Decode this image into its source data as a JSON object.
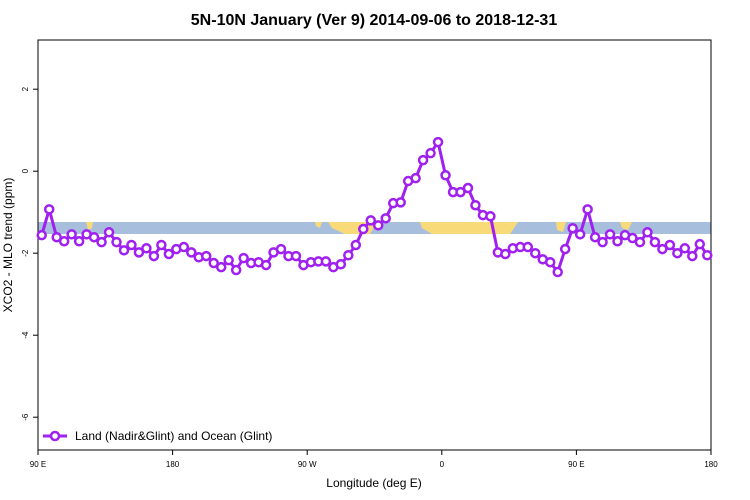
{
  "chart_data": {
    "type": "line",
    "title": "5N-10N January (Ver 9)   2014-09-06 to 2018-12-31",
    "x_label": "Longitude (deg E)",
    "y_label": "XCO2 - MLO trend (ppm)",
    "x": [
      92.5,
      97.5,
      102.5,
      107.5,
      112.5,
      117.5,
      122.5,
      127.5,
      132.5,
      137.5,
      142.5,
      147.5,
      152.5,
      157.5,
      162.5,
      167.5,
      172.5,
      177.5,
      182.5,
      187.5,
      192.5,
      197.5,
      202.5,
      207.5,
      212.5,
      217.5,
      222.5,
      227.5,
      232.5,
      237.5,
      242.5,
      247.5,
      252.5,
      257.5,
      262.5,
      267.5,
      272.5,
      277.5,
      282.5,
      287.5,
      292.5,
      297.5,
      302.5,
      307.5,
      312.5,
      317.5,
      322.5,
      327.5,
      332.5,
      337.5,
      342.5,
      347.5,
      352.5,
      357.5,
      362.5,
      367.5,
      372.5,
      377.5,
      382.5,
      387.5,
      392.5,
      397.5,
      402.5,
      407.5,
      412.5,
      417.5,
      422.5,
      427.5,
      432.5,
      437.5,
      442.5,
      447.5,
      452.5,
      457.5,
      462.5,
      467.5,
      472.5,
      477.5,
      482.5,
      487.5,
      492.5,
      497.5,
      502.5,
      507.5,
      512.5,
      517.5,
      522.5,
      527.5,
      532.5,
      537.5
    ],
    "series": [
      {
        "name": "Land (Nadir&Glint) and Ocean (Glint)",
        "color": "#a020f0",
        "values": [
          -1.56,
          -0.93,
          -1.61,
          -1.71,
          -1.54,
          -1.71,
          -1.54,
          -1.61,
          -1.73,
          -1.49,
          -1.73,
          -1.93,
          -1.8,
          -1.98,
          -1.88,
          -2.07,
          -1.8,
          -2.02,
          -1.9,
          -1.85,
          -1.98,
          -2.1,
          -2.07,
          -2.24,
          -2.34,
          -2.17,
          -2.41,
          -2.12,
          -2.24,
          -2.22,
          -2.29,
          -1.98,
          -1.9,
          -2.07,
          -2.07,
          -2.29,
          -2.22,
          -2.2,
          -2.2,
          -2.34,
          -2.27,
          -2.05,
          -1.8,
          -1.41,
          -1.2,
          -1.32,
          -1.15,
          -0.78,
          -0.76,
          -0.24,
          -0.17,
          0.27,
          0.44,
          0.71,
          -0.1,
          -0.51,
          -0.51,
          -0.41,
          -0.83,
          -1.07,
          -1.1,
          -1.98,
          -2.02,
          -1.88,
          -1.85,
          -1.85,
          -2.0,
          -2.15,
          -2.22,
          -2.46,
          -1.9,
          -1.39,
          -1.54,
          -0.93,
          -1.61,
          -1.73,
          -1.54,
          -1.71,
          -1.56,
          -1.63,
          -1.73,
          -1.49,
          -1.73,
          -1.9,
          -1.8,
          -2.0,
          -1.88,
          -2.07,
          -1.78,
          -2.05
        ]
      }
    ],
    "xlim": [
      90,
      540
    ],
    "xticks": [
      {
        "value": 90,
        "label": "90 E"
      },
      180,
      {
        "value": 270,
        "label": "90 W"
      },
      {
        "value": 360,
        "label": "0"
      },
      {
        "value": 450,
        "label": "90 E"
      },
      {
        "value": 540,
        "label": "180"
      }
    ],
    "ylim": [
      -6.8,
      3.2
    ],
    "yticks": [
      -6,
      -4,
      -2,
      0,
      2
    ],
    "legend": "bottom-left"
  }
}
